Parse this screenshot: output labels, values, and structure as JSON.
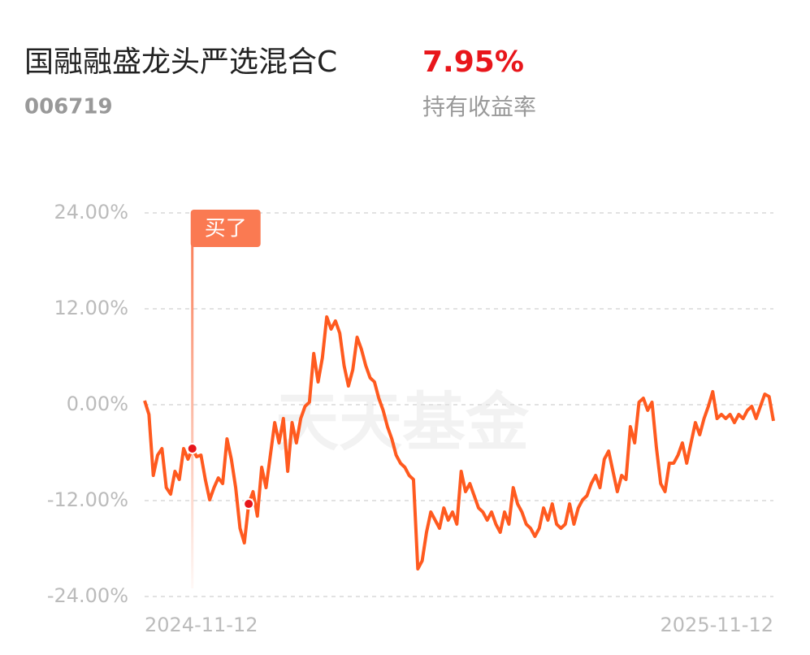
{
  "header": {
    "title": "国融融盛龙头严选混合C",
    "code": "006719",
    "holding_return": "7.95%",
    "holding_return_label": "持有收益率"
  },
  "chart_data": {
    "type": "line",
    "watermark": "天天基金",
    "categories": [
      "2024-11-12",
      null,
      null,
      null,
      null,
      null,
      null,
      null,
      null,
      null,
      null,
      null,
      null,
      null,
      null,
      null,
      null,
      null,
      null,
      null,
      null,
      null,
      null,
      null,
      null,
      null,
      null,
      null,
      null,
      null,
      null,
      null,
      null,
      null,
      null,
      null,
      null,
      null,
      null,
      null,
      null,
      null,
      null,
      null,
      null,
      null,
      null,
      null,
      null,
      null,
      null,
      null,
      null,
      null,
      null,
      null,
      null,
      null,
      null,
      null,
      null,
      null,
      null,
      null,
      null,
      null,
      null,
      null,
      null,
      null,
      null,
      null,
      null,
      null,
      null,
      null,
      null,
      null,
      null,
      null,
      null,
      null,
      null,
      null,
      null,
      null,
      null,
      null,
      null,
      null,
      null,
      null,
      null,
      null,
      null,
      null,
      null,
      null,
      null,
      null,
      null,
      null,
      null,
      null,
      null,
      null,
      null,
      null,
      null,
      null,
      null,
      null,
      null,
      null,
      null,
      null,
      null,
      null,
      null,
      null,
      null,
      null,
      null,
      null,
      null,
      null,
      null,
      null,
      null,
      null,
      null,
      null,
      null,
      null,
      null,
      null,
      null,
      null,
      null,
      null,
      null,
      null,
      null,
      null,
      null,
      "2025-11-12"
    ],
    "series": [
      {
        "color": "#ff5a1f",
        "values": [
          0.51,
          -1.22,
          -8.85,
          -6.31,
          -5.49,
          -10.38,
          -11.19,
          -8.34,
          -9.36,
          -5.49,
          -6.82,
          -5.49,
          -6.51,
          -6.31,
          -9.36,
          -11.9,
          -10.38,
          -9.16,
          -9.87,
          -4.27,
          -6.82,
          -10.38,
          -15.46,
          -17.29,
          -12.41,
          -10.88,
          -13.94,
          -7.83,
          -10.38,
          -6.31,
          -2.24,
          -4.78,
          -1.73,
          -8.34,
          -2.24,
          -4.78,
          -1.73,
          -0.2,
          0.31,
          6.41,
          2.85,
          5.9,
          10.99,
          9.46,
          10.48,
          8.95,
          4.88,
          2.34,
          4.37,
          8.44,
          6.92,
          4.88,
          3.36,
          2.85,
          0.81,
          -0.71,
          -2.75,
          -4.27,
          -6.31,
          -7.32,
          -7.83,
          -8.85,
          -9.36,
          -20.55,
          -19.53,
          -15.97,
          -13.43,
          -14.45,
          -15.46,
          -12.92,
          -14.45,
          -13.43,
          -14.95,
          -8.34,
          -10.88,
          -9.87,
          -11.39,
          -12.92,
          -13.43,
          -14.45,
          -13.43,
          -14.95,
          -15.97,
          -13.43,
          -14.95,
          -10.38,
          -12.41,
          -13.43,
          -14.95,
          -15.46,
          -16.48,
          -15.46,
          -12.92,
          -14.45,
          -12.41,
          -14.95,
          -15.46,
          -14.95,
          -12.41,
          -14.95,
          -12.92,
          -11.9,
          -11.39,
          -9.87,
          -8.85,
          -10.38,
          -6.82,
          -5.8,
          -8.34,
          -10.88,
          -8.85,
          -9.36,
          -2.75,
          -4.78,
          0.31,
          0.81,
          -0.71,
          0.31,
          -5.29,
          -9.87,
          -10.88,
          -7.32,
          -7.32,
          -6.31,
          -4.78,
          -7.32,
          -4.78,
          -2.24,
          -3.76,
          -1.73,
          -0.2,
          1.63,
          -1.73,
          -1.22,
          -1.73,
          -1.22,
          -2.24,
          -1.22,
          -1.73,
          -0.71,
          -0.2,
          -1.73,
          -0.2,
          1.32,
          1.02,
          -2.03
        ]
      }
    ],
    "annotations": [
      {
        "label": "买了",
        "point": 11
      },
      {
        "point": 24
      }
    ],
    "ylim": [
      -24,
      24
    ],
    "yticks": [
      {
        "value": -24,
        "label": "-24.00%"
      },
      {
        "value": -12,
        "label": "-12.00%"
      },
      {
        "value": 0,
        "label": "0.00%"
      },
      {
        "value": 12,
        "label": "12.00%"
      },
      {
        "value": 24,
        "label": "24.00%"
      }
    ],
    "grid": true
  }
}
